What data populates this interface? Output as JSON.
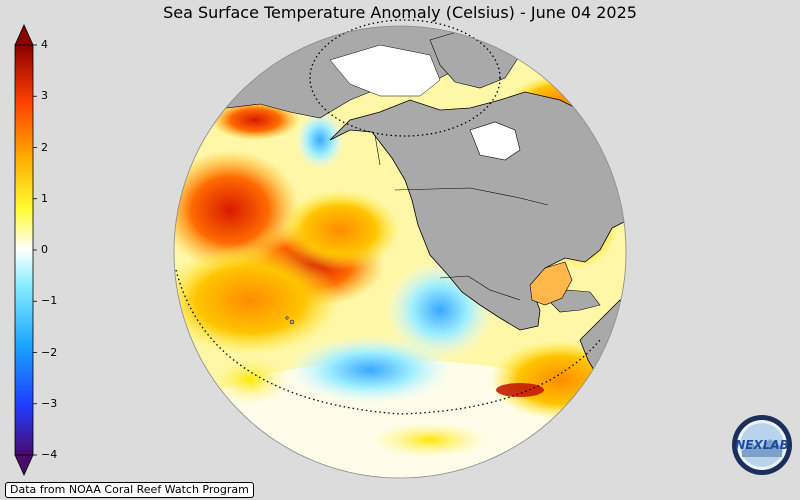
{
  "title": "Sea Surface Temperature Anomaly (Celsius) - June 04 2025",
  "colorbar": {
    "ticks": [
      "4",
      "3",
      "2",
      "1",
      "0",
      "−1",
      "−2",
      "−3",
      "−4"
    ],
    "min": -4,
    "max": 4,
    "extend": "both",
    "colors": [
      "#4b0a6e",
      "#1f3cff",
      "#1aa6ff",
      "#8ff0ff",
      "#ffffff",
      "#fffb33",
      "#ffb000",
      "#ff4000",
      "#8b0000"
    ]
  },
  "map": {
    "projection": "orthographic",
    "land_color": "#a9a9a9",
    "ocean_background": "#ffffff"
  },
  "footer": {
    "source": "Data from NOAA Coral Reef Watch Program"
  },
  "logo": {
    "text": "NEXLAB"
  }
}
